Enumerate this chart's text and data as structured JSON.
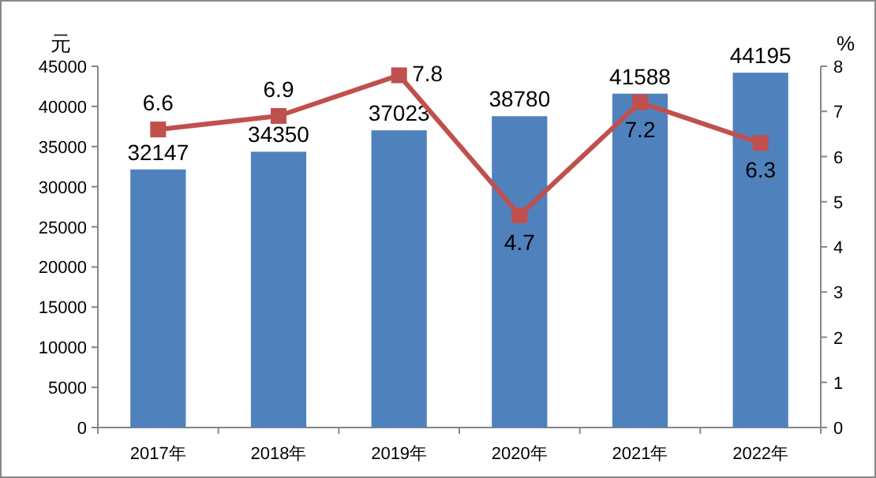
{
  "chart_data": {
    "type": "bar",
    "ylabel": "元",
    "y2label": "%",
    "categories": [
      "2017年",
      "2018年",
      "2019年",
      "2020年",
      "2021年",
      "2022年"
    ],
    "series": [
      {
        "color": "#4f81bd",
        "values": [
          32147,
          34350,
          37023,
          38780,
          41588,
          44195
        ]
      },
      {
        "type": "line",
        "axis": "y2",
        "color": "#c0504d",
        "marker": "square",
        "values": [
          6.6,
          6.9,
          7.8,
          4.7,
          7.2,
          6.3
        ]
      }
    ],
    "ylim": [
      0,
      45000
    ],
    "yticks": [
      0,
      5000,
      10000,
      15000,
      20000,
      25000,
      30000,
      35000,
      40000,
      45000
    ],
    "y2lim": [
      0,
      8
    ],
    "y2ticks": [
      0,
      1,
      2,
      3,
      4,
      5,
      6,
      7,
      8
    ],
    "data_labels": true
  }
}
